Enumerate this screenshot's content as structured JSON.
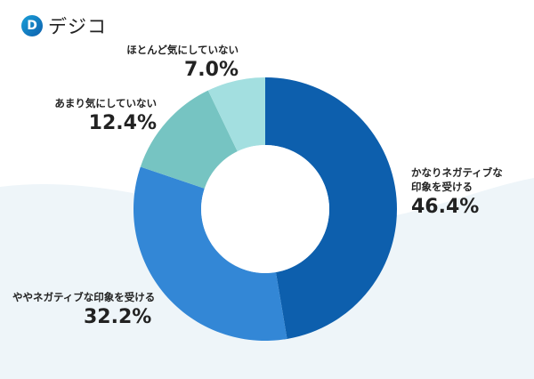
{
  "brand": {
    "logo_text": "デジコ",
    "logo_mark": "D"
  },
  "chart_data": {
    "type": "pie",
    "donut": true,
    "legend": "none",
    "slices": [
      {
        "label_lines": [
          "かなりネガティブな",
          "印象を受ける"
        ],
        "value": 46.4,
        "display": "46.4%",
        "color": "#0d5fad"
      },
      {
        "label_lines": [
          "ややネガティブな印象を受ける"
        ],
        "value": 32.2,
        "display": "32.2%",
        "color": "#3387d6"
      },
      {
        "label_lines": [
          "あまり気にしていない"
        ],
        "value": 12.4,
        "display": "12.4%",
        "color": "#76c4c2"
      },
      {
        "label_lines": [
          "ほとんど気にしていない"
        ],
        "value": 7.0,
        "display": "7.0%",
        "color": "#a3dfe0"
      }
    ]
  }
}
